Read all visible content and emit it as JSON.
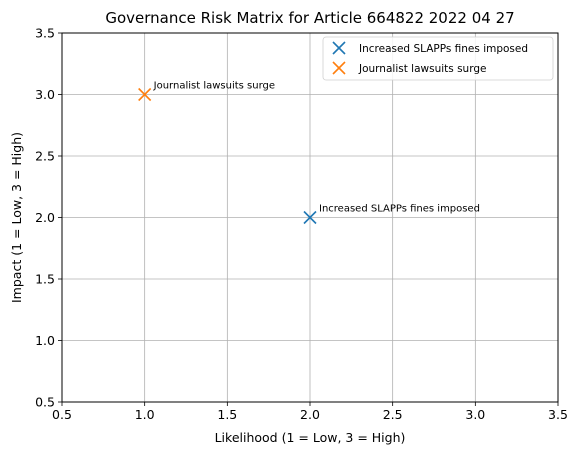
{
  "chart_data": {
    "type": "scatter",
    "title": "Governance Risk Matrix for Article 664822 2022 04 27",
    "xlabel": "Likelihood (1 = Low, 3 = High)",
    "ylabel": "Impact (1 = Low, 3 = High)",
    "xlim": [
      0.5,
      3.5
    ],
    "ylim": [
      0.5,
      3.5
    ],
    "xticks": [
      "0.5",
      "1.0",
      "1.5",
      "2.0",
      "2.5",
      "3.0",
      "3.5"
    ],
    "yticks": [
      "0.5",
      "1.0",
      "1.5",
      "2.0",
      "2.5",
      "3.0",
      "3.5"
    ],
    "grid": true,
    "legend_position": "top-right",
    "marker": "x",
    "series": [
      {
        "name": "Increased SLAPPs fines imposed",
        "color": "#1f77b4",
        "x": 2,
        "y": 2,
        "label": "Increased SLAPPs fines imposed"
      },
      {
        "name": "Journalist lawsuits surge",
        "color": "#ff7f0e",
        "x": 1,
        "y": 3,
        "label": "Journalist lawsuits surge"
      }
    ]
  }
}
